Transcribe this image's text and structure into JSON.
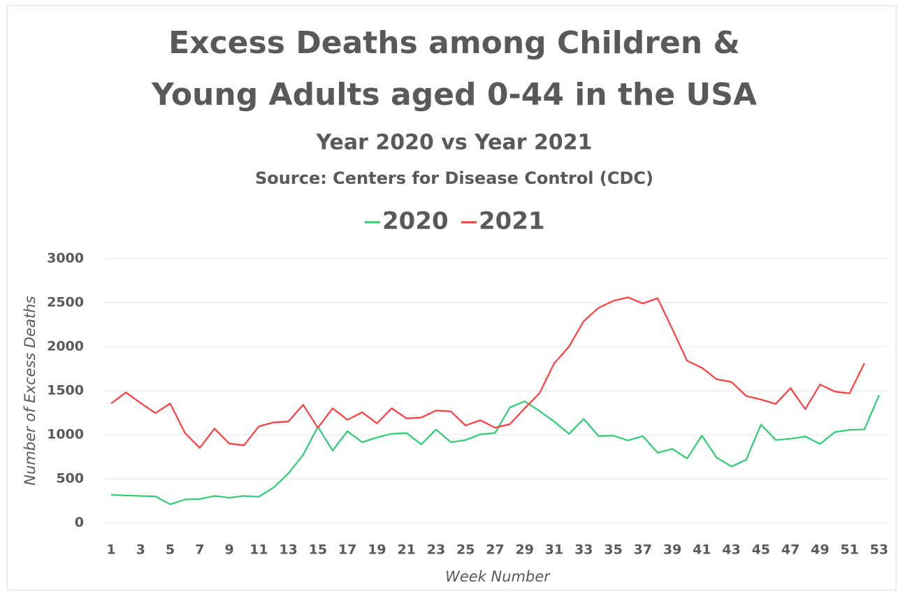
{
  "chart_data": {
    "type": "line",
    "title": [
      "Excess Deaths among Children &",
      "Young Adults aged 0-44 in the USA"
    ],
    "subtitle": "Year 2020 vs Year 2021",
    "source": "Source: Centers for Disease Control (CDC)",
    "x_label": "Week Number",
    "y_label": "Number of Excess Deaths",
    "x": [
      1,
      2,
      3,
      4,
      5,
      6,
      7,
      8,
      9,
      10,
      11,
      12,
      13,
      14,
      15,
      16,
      17,
      18,
      19,
      20,
      21,
      22,
      23,
      24,
      25,
      26,
      27,
      28,
      29,
      30,
      31,
      32,
      33,
      34,
      35,
      36,
      37,
      38,
      39,
      40,
      41,
      42,
      43,
      44,
      45,
      46,
      47,
      48,
      49,
      50,
      51,
      52,
      53
    ],
    "xlim": [
      1,
      53
    ],
    "xticks": [
      1,
      3,
      5,
      7,
      9,
      11,
      13,
      15,
      17,
      19,
      21,
      23,
      25,
      27,
      29,
      31,
      33,
      35,
      37,
      39,
      41,
      43,
      45,
      47,
      49,
      51,
      53
    ],
    "ylim": [
      0,
      3000
    ],
    "yticks": [
      0,
      500,
      1000,
      1500,
      2000,
      2500,
      3000
    ],
    "grid": true,
    "legend": "top",
    "series": [
      {
        "name": "2020",
        "color": "#2ecc71",
        "values": [
          318,
          310,
          305,
          300,
          210,
          265,
          270,
          305,
          285,
          305,
          295,
          400,
          560,
          770,
          1090,
          820,
          1040,
          915,
          970,
          1010,
          1020,
          890,
          1060,
          915,
          940,
          1005,
          1020,
          1310,
          1380,
          1270,
          1150,
          1010,
          1180,
          985,
          990,
          935,
          985,
          795,
          840,
          730,
          990,
          740,
          640,
          715,
          1115,
          940,
          955,
          980,
          895,
          1030,
          1055,
          1060,
          1450
        ]
      },
      {
        "name": "2021",
        "color": "#ff3b3b",
        "values": [
          1355,
          1480,
          1360,
          1245,
          1355,
          1020,
          850,
          1070,
          900,
          880,
          1095,
          1140,
          1150,
          1340,
          1080,
          1300,
          1170,
          1255,
          1130,
          1300,
          1185,
          1195,
          1275,
          1265,
          1105,
          1165,
          1080,
          1120,
          1300,
          1470,
          1810,
          2000,
          2290,
          2440,
          2520,
          2560,
          2490,
          2550,
          2200,
          1840,
          1760,
          1630,
          1600,
          1440,
          1400,
          1350,
          1530,
          1290,
          1570,
          1490,
          1470,
          1810,
          null
        ]
      }
    ]
  }
}
